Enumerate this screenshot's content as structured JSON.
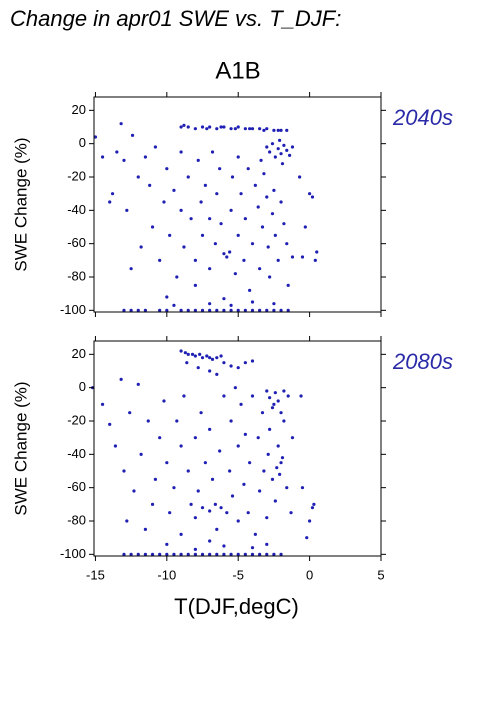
{
  "title": "Change in apr01 SWE vs. T_DJF:",
  "subtitle": "A1B",
  "chart_data": [
    {
      "type": "scatter",
      "label": "2040s",
      "ylabel": "SWE Change (%)",
      "color": "#1f1fb4",
      "label_color": "#2a2aa8",
      "show_xtick_labels": false,
      "xlim": [
        -15.1,
        5
      ],
      "ylim": [
        -101,
        28
      ],
      "xticks": [
        -15,
        -10,
        -5,
        0,
        5
      ],
      "yticks": [
        -100,
        -80,
        -60,
        -40,
        -20,
        0,
        20
      ],
      "x": [
        -9,
        -8.5,
        -8,
        -7.5,
        -7,
        -6.5,
        -6,
        -5.5,
        -5,
        -4.5,
        -4,
        -3.5,
        -3,
        -2.5,
        -2,
        -8.8,
        -7.2,
        -6.2,
        -5.2,
        -4.2,
        -3.2,
        -2.2,
        -1.6,
        -13,
        -12.5,
        -12,
        -11.5,
        -10.5,
        -10,
        -9,
        -8.5,
        -8,
        -7.5,
        -7,
        -6.5,
        -6,
        -5.5,
        -5,
        -4.5,
        -4,
        -3.5,
        -3,
        -2.5,
        -2,
        -1.5,
        -9.5,
        -7,
        -5.5,
        -4,
        -2.5,
        -10,
        -6,
        -15,
        -14.5,
        -14,
        -13.8,
        -13.5,
        -13.2,
        -13,
        -12.8,
        -12.5,
        -12.4,
        -12,
        -11.8,
        -11.5,
        -11.2,
        -11,
        -10.8,
        -10.5,
        -10.2,
        -10,
        -9.8,
        -9.5,
        -9.3,
        -9,
        -9,
        -8.8,
        -8.5,
        -8.3,
        -8,
        -8,
        -7.8,
        -7.6,
        -7.5,
        -7.3,
        -7,
        -7,
        -6.8,
        -6.6,
        -6.5,
        -6.3,
        -6.2,
        -6,
        -5.8,
        -5.6,
        -5.5,
        -5.4,
        -5.2,
        -5,
        -5,
        -4.8,
        -4.6,
        -4.5,
        -4.3,
        -4.2,
        -4,
        -3.8,
        -3.6,
        -3.5,
        -3.3,
        -3.2,
        -3,
        -2.9,
        -2.8,
        -2.6,
        -2.5,
        -2.4,
        -2.2,
        -2,
        -1.8,
        -1.6,
        -1.5,
        -1.2,
        -3,
        -2.8,
        -2.6,
        -2.4,
        -2.2,
        -2,
        -1.8,
        -1.6,
        -1.4,
        -1.2,
        -3.4,
        -1.9,
        -2.1,
        -0.5,
        0,
        0.2,
        0.4,
        -0.3,
        -0.7,
        0.5
      ],
      "values": [
        10,
        10,
        9,
        10,
        10,
        9,
        10,
        9,
        10,
        9,
        9,
        9,
        9,
        8,
        8,
        11,
        9,
        10,
        9,
        9,
        8,
        8,
        8,
        -100,
        -100,
        -100,
        -100,
        -100,
        -100,
        -100,
        -100,
        -100,
        -100,
        -100,
        -100,
        -100,
        -100,
        -100,
        -100,
        -100,
        -100,
        -100,
        -100,
        -100,
        -100,
        -97,
        -96,
        -97,
        -95,
        -96,
        -92,
        -93,
        4,
        -8,
        -35,
        -30,
        -5,
        12,
        -10,
        -40,
        -75,
        5,
        -20,
        -62,
        -8,
        -25,
        -50,
        -2,
        -70,
        -35,
        -15,
        -55,
        -28,
        -80,
        -40,
        -5,
        -62,
        -20,
        -45,
        -70,
        -85,
        -10,
        -35,
        -55,
        -25,
        -45,
        -75,
        -5,
        -60,
        -30,
        -15,
        -48,
        -66,
        -68,
        -65,
        -40,
        -20,
        -78,
        -55,
        -8,
        -30,
        -70,
        -45,
        -15,
        -88,
        -60,
        -25,
        -38,
        -75,
        -50,
        -18,
        -32,
        -62,
        -80,
        -42,
        -28,
        -55,
        -70,
        -35,
        -48,
        -60,
        -85,
        -68,
        -2,
        -5,
        0,
        -8,
        -3,
        -6,
        -1,
        -4,
        -7,
        -2,
        -10,
        -12,
        2,
        -68,
        -30,
        -32,
        -70,
        -50,
        -20,
        -65
      ]
    },
    {
      "type": "scatter",
      "label": "2080s",
      "ylabel": "SWE Change (%)",
      "xlabel": "T(DJF,degC)",
      "color": "#1f1fb4",
      "label_color": "#2a2aa8",
      "show_xtick_labels": true,
      "xlim": [
        -15.1,
        5
      ],
      "ylim": [
        -101,
        28
      ],
      "xticks": [
        -15,
        -10,
        -5,
        0,
        5
      ],
      "yticks": [
        -100,
        -80,
        -60,
        -40,
        -20,
        0,
        20
      ],
      "x": [
        -9,
        -8.7,
        -8.5,
        -8.2,
        -8,
        -7.7,
        -7.5,
        -7.2,
        -7,
        -6.8,
        -6.5,
        -6.2,
        -6,
        -5.5,
        -5,
        -4.5,
        -4,
        -8.6,
        -7.8,
        -7,
        -6.5,
        -13,
        -12.5,
        -12,
        -11.5,
        -11,
        -10.5,
        -10,
        -9.5,
        -9,
        -8.5,
        -8,
        -7.5,
        -7,
        -6.5,
        -6,
        -5.5,
        -5,
        -4.5,
        -4,
        -3.5,
        -3,
        -2.5,
        -2,
        -8,
        -6,
        -4,
        -10,
        -7,
        -3,
        -15.2,
        -14.5,
        -14,
        -13.6,
        -13.2,
        -13,
        -12.8,
        -12.6,
        -12.3,
        -12,
        -11.8,
        -11.5,
        -11.3,
        -11,
        -10.8,
        -10.5,
        -10.2,
        -10,
        -9.8,
        -9.5,
        -9.3,
        -9,
        -9,
        -8.8,
        -8.5,
        -8.3,
        -8,
        -8,
        -7.8,
        -7.6,
        -7.5,
        -7.3,
        -7,
        -7,
        -6.8,
        -6.6,
        -6.5,
        -6.3,
        -6.2,
        -6,
        -5.8,
        -5.6,
        -5.5,
        -5.4,
        -5.2,
        -5,
        -5,
        -4.8,
        -4.6,
        -4.5,
        -4.3,
        -4.2,
        -4,
        -3.8,
        -3.6,
        -3.5,
        -3.3,
        -3.2,
        -3,
        -2.9,
        -2.8,
        -2.6,
        -2.5,
        -2.4,
        -2.2,
        -2,
        -1.8,
        -1.6,
        -1.5,
        -1.3,
        -1.2,
        -3,
        -2.8,
        -2.6,
        -2.4,
        -2.2,
        -2,
        -1.8,
        -2.3,
        -2.1,
        -1.9,
        -0.5,
        0,
        0.2,
        -0.2,
        0.3,
        -0.6
      ],
      "values": [
        22,
        21,
        20,
        20,
        19,
        20,
        18,
        19,
        18,
        17,
        18,
        19,
        15,
        13,
        12,
        15,
        16,
        15,
        12,
        10,
        8,
        -100,
        -100,
        -100,
        -100,
        -100,
        -100,
        -100,
        -100,
        -100,
        -100,
        -100,
        -100,
        -100,
        -100,
        -100,
        -100,
        -100,
        -100,
        -100,
        -100,
        -100,
        -100,
        -100,
        -97,
        -95,
        -96,
        -94,
        -92,
        -94,
        0,
        -10,
        -22,
        -35,
        5,
        -50,
        -80,
        -15,
        -62,
        2,
        -40,
        -85,
        -20,
        -70,
        -55,
        -30,
        -8,
        -45,
        -75,
        -60,
        -20,
        -35,
        -88,
        -5,
        -50,
        -70,
        -30,
        -78,
        -62,
        -15,
        -72,
        -45,
        -74,
        -25,
        -55,
        -70,
        -85,
        -38,
        -72,
        -5,
        -75,
        -50,
        -20,
        -65,
        0,
        -80,
        -35,
        -10,
        -58,
        -28,
        -75,
        -45,
        -5,
        -88,
        -30,
        -62,
        -15,
        -50,
        -78,
        -40,
        -25,
        -55,
        -10,
        -68,
        -35,
        -45,
        -20,
        -60,
        -5,
        -75,
        -30,
        -2,
        -6,
        -12,
        -3,
        -8,
        -15,
        -2,
        -48,
        -52,
        -42,
        -60,
        -80,
        -72,
        -90,
        -70,
        -5
      ]
    }
  ]
}
